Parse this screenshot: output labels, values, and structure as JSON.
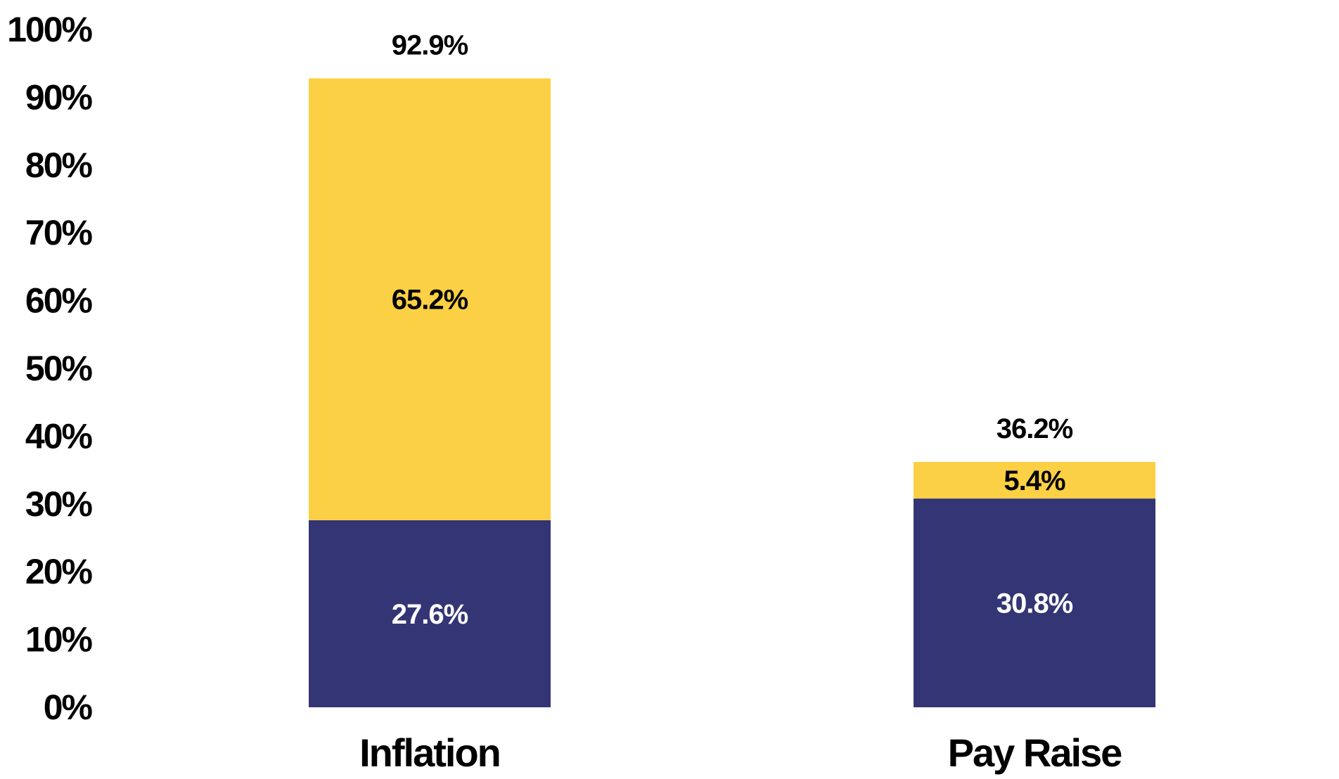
{
  "chart_data": {
    "type": "bar",
    "stacked": true,
    "title": "",
    "xlabel": "",
    "ylabel": "",
    "categories": [
      "Inflation",
      "Pay Raise"
    ],
    "series": [
      {
        "values": [
          27.6,
          30.8
        ],
        "labels": [
          "27.6%",
          "30.8%"
        ],
        "color": "#343574",
        "label_color": "#ffffff"
      },
      {
        "values": [
          65.2,
          5.4
        ],
        "labels": [
          "65.2%",
          "5.4%"
        ],
        "color": "#fcd045",
        "label_color": "#000000"
      }
    ],
    "totals": [
      "92.9%",
      "36.2%"
    ],
    "ylim": [
      0,
      100
    ],
    "yticks": [
      0,
      10,
      20,
      30,
      40,
      50,
      60,
      70,
      80,
      90,
      100
    ],
    "ytick_labels": [
      "0%",
      "10%",
      "20%",
      "30%",
      "40%",
      "50%",
      "60%",
      "70%",
      "80%",
      "90%",
      "100%"
    ],
    "grid": false,
    "legend": "none"
  }
}
